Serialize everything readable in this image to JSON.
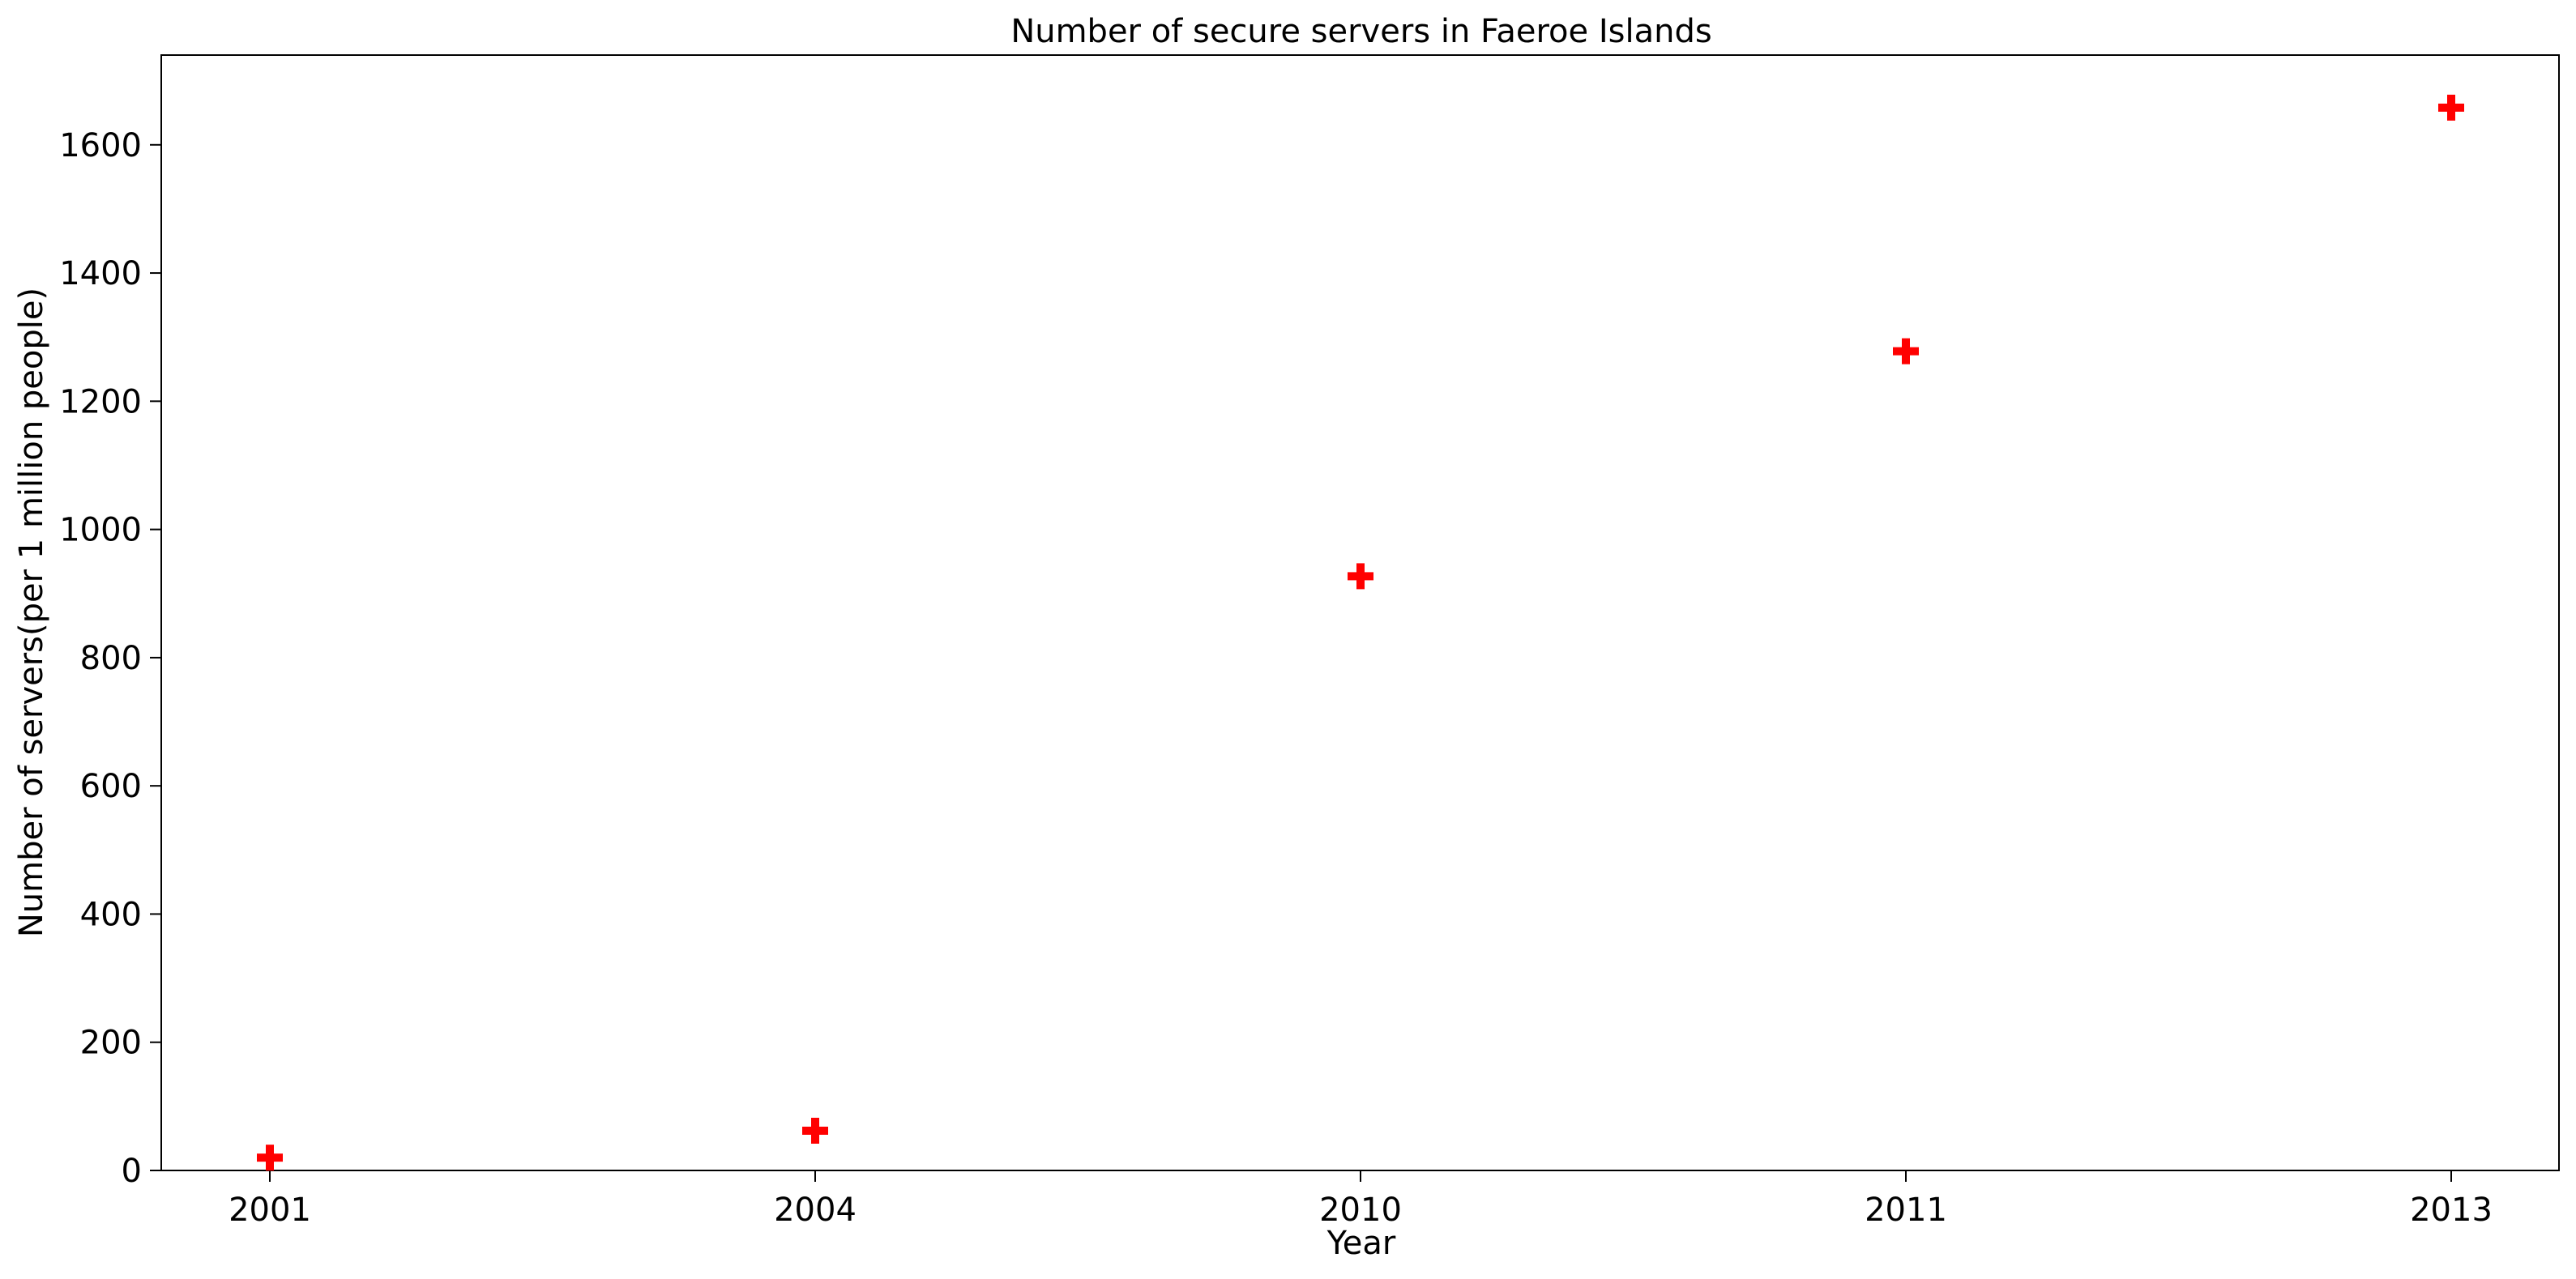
{
  "chart_data": {
    "type": "scatter",
    "title": "Number of secure servers in Faeroe Islands",
    "xlabel": "Year",
    "ylabel": "Number of servers(per 1 million people)",
    "categories": [
      "2001",
      "2004",
      "2010",
      "2011",
      "2013"
    ],
    "values": [
      20,
      62,
      927,
      1278,
      1658
    ],
    "ylim": [
      0,
      1740
    ],
    "yticks": [
      0,
      200,
      400,
      600,
      800,
      1000,
      1200,
      1400,
      1600
    ],
    "marker": "plus-filled",
    "marker_color": "#ff0000",
    "grid": false,
    "legend": "none"
  }
}
